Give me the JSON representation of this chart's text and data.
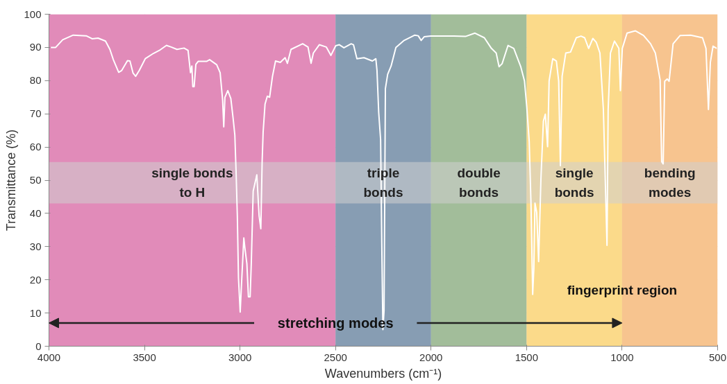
{
  "chart_data": {
    "type": "line",
    "xlabel": "Wavenumbers (cm⁻¹)",
    "ylabel": "Transmittance (%)",
    "xlim": [
      4000,
      500
    ],
    "xticks": [
      4000,
      3500,
      3000,
      2500,
      2000,
      1500,
      1000,
      500
    ],
    "ylim": [
      0,
      100
    ],
    "yticks": [
      0,
      10,
      20,
      30,
      40,
      50,
      60,
      70,
      80,
      90,
      100
    ],
    "grid": true,
    "x": [
      3990,
      3965,
      3928,
      3873,
      3805,
      3774,
      3743,
      3704,
      3681,
      3663,
      3635,
      3620,
      3589,
      3576,
      3560,
      3546,
      3527,
      3496,
      3453,
      3422,
      3385,
      3360,
      3330,
      3293,
      3272,
      3259,
      3252,
      3247,
      3240,
      3231,
      3219,
      3175,
      3159,
      3122,
      3104,
      3091,
      3085,
      3079,
      3064,
      3048,
      3036,
      3027,
      3020,
      3014,
      3008,
      2999,
      2993,
      2980,
      2974,
      2964,
      2956,
      2947,
      2941,
      2931,
      2912,
      2900,
      2891,
      2884,
      2879,
      2869,
      2857,
      2845,
      2830,
      2814,
      2789,
      2764,
      2752,
      2733,
      2672,
      2644,
      2628,
      2616,
      2585,
      2548,
      2524,
      2499,
      2480,
      2456,
      2418,
      2406,
      2388,
      2351,
      2307,
      2289,
      2283,
      2274,
      2264,
      2258,
      2252,
      2246,
      2239,
      2227,
      2209,
      2184,
      2141,
      2085,
      2067,
      2052,
      2036,
      2002,
      1881,
      1820,
      1770,
      1721,
      1684,
      1659,
      1644,
      1628,
      1597,
      1567,
      1530,
      1511,
      1499,
      1486,
      1477,
      1468,
      1462,
      1456,
      1447,
      1437,
      1425,
      1412,
      1402,
      1390,
      1382,
      1363,
      1344,
      1332,
      1323,
      1314,
      1295,
      1270,
      1240,
      1215,
      1196,
      1175,
      1153,
      1135,
      1116,
      1098,
      1079,
      1073,
      1061,
      1040,
      1017,
      1009,
      999,
      974,
      931,
      888,
      851,
      826,
      801,
      793,
      785,
      777,
      764,
      754,
      733,
      696,
      641,
      579,
      561,
      548,
      538,
      524,
      505
    ],
    "series": [
      {
        "color": "#ffffff",
        "values": [
          90,
          90,
          92.3,
          93.7,
          93.5,
          92.6,
          92.8,
          91.9,
          89.4,
          86.3,
          82.5,
          83,
          86,
          85.9,
          82.3,
          81.3,
          83.1,
          86.6,
          88.2,
          89.1,
          90.6,
          90.1,
          89.4,
          89.8,
          89.1,
          82.4,
          84.4,
          78.2,
          78.2,
          84.9,
          85.8,
          85.8,
          86.3,
          84.8,
          82.4,
          74.2,
          66.1,
          74.9,
          77,
          74.6,
          68.6,
          63.6,
          51.6,
          39.3,
          20.5,
          10.3,
          17.7,
          32.6,
          29.4,
          24.8,
          14.9,
          14.9,
          24.8,
          46.7,
          51.6,
          39.3,
          35.4,
          55.9,
          64.4,
          72.9,
          75.3,
          75,
          81.3,
          85.9,
          85.5,
          86.9,
          85.2,
          89.4,
          91.1,
          90.1,
          85.2,
          88.3,
          90.8,
          90.1,
          87.6,
          90.5,
          90.8,
          89.9,
          91.1,
          90.8,
          86.6,
          86.9,
          85.9,
          86.6,
          83.1,
          70.4,
          62.2,
          31.2,
          5,
          10.7,
          77.6,
          81.9,
          84.4,
          90,
          92.1,
          93.7,
          93.5,
          92.1,
          93.2,
          93.4,
          93.4,
          93.3,
          94.3,
          92.9,
          89.7,
          88.3,
          84.2,
          85.1,
          90.6,
          89.7,
          84.1,
          79.9,
          72.1,
          61.5,
          43.1,
          15.6,
          23.4,
          43.1,
          40.3,
          25.5,
          50.2,
          67.8,
          69.9,
          60.1,
          79.9,
          86.6,
          85.9,
          79.9,
          54.4,
          81.3,
          88.3,
          88.6,
          92.9,
          93.4,
          92.9,
          89.7,
          92.7,
          91.5,
          88.3,
          71.3,
          30.4,
          71.3,
          88.3,
          91.9,
          89.7,
          77,
          89.7,
          94.3,
          95,
          93.6,
          91.1,
          88.3,
          80.2,
          55.6,
          54.9,
          79.8,
          80.5,
          79.8,
          91.1,
          93.6,
          93.7,
          92.9,
          89.7,
          71.3,
          85.5,
          90.4,
          89.7
        ]
      }
    ],
    "bands": [
      {
        "axis": "x",
        "from": 4000,
        "to": 2500,
        "label": "single bonds\nto H",
        "color": "#e18bb9"
      },
      {
        "axis": "x",
        "from": 2500,
        "to": 2000,
        "label": "triple\nbonds",
        "color": "#879db3"
      },
      {
        "axis": "x",
        "from": 2000,
        "to": 1500,
        "label": "double\nbonds",
        "color": "#a2bd9a"
      },
      {
        "axis": "x",
        "from": 1500,
        "to": 1000,
        "label": "single\nbonds",
        "color": "#fbda8a"
      },
      {
        "axis": "x",
        "from": 1000,
        "to": 500,
        "label": "bending\nmodes",
        "color": "#f7c48f"
      },
      {
        "axis": "y",
        "from": 43,
        "to": 55.5,
        "color": "#cfcfcf"
      }
    ],
    "annotations": [
      "stretching modes",
      "fingerprint region"
    ]
  }
}
